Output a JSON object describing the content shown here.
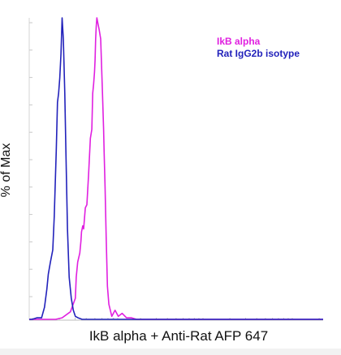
{
  "chart_data": {
    "type": "line",
    "title": "",
    "xlabel": "IkB alpha + Anti-Rat AFP 647",
    "ylabel": "% of Max",
    "xlim": [
      0,
      1000
    ],
    "ylim": [
      0,
      100
    ],
    "grid": false,
    "legend": "top-right",
    "series": [
      {
        "name": "IkB alpha",
        "color": "#e020e0",
        "x": [
          0,
          60,
          90,
          112,
          140,
          157,
          160,
          165,
          172,
          176,
          178,
          182,
          185,
          191,
          196,
          202,
          208,
          213,
          216,
          219,
          222,
          224,
          226,
          228,
          230,
          234,
          238,
          243,
          249,
          253,
          255,
          258,
          262,
          266,
          271,
          276,
          281,
          292,
          303,
          316,
          331,
          348,
          365,
          387,
          420,
          470,
          1000
        ],
        "y": [
          0,
          0,
          0,
          0.5,
          2.5,
          7,
          14,
          19,
          22,
          26,
          29,
          31,
          30,
          37,
          38,
          48,
          60,
          63,
          75,
          78,
          82,
          86,
          93,
          97,
          100,
          98,
          96,
          93,
          76,
          63,
          55,
          44,
          27,
          11,
          5,
          3,
          1,
          3,
          1,
          2,
          0.5,
          0.5,
          0,
          0,
          0,
          0,
          0
        ]
      },
      {
        "name": "Rat IgG2b isotype",
        "color": "#2222bb",
        "x": [
          0,
          10,
          26,
          42,
          52,
          60,
          65,
          72,
          80,
          85,
          92,
          96,
          100,
          104,
          108,
          112,
          116,
          121,
          125,
          130,
          136,
          143,
          150,
          157,
          166,
          180,
          200,
          1000
        ],
        "y": [
          0,
          0,
          0.5,
          0.5,
          4,
          10,
          15,
          19,
          23,
          34,
          56,
          72,
          75,
          80,
          88,
          100,
          93,
          75,
          54,
          30,
          14,
          7,
          3,
          1,
          0.5,
          0,
          0,
          0
        ]
      }
    ]
  }
}
